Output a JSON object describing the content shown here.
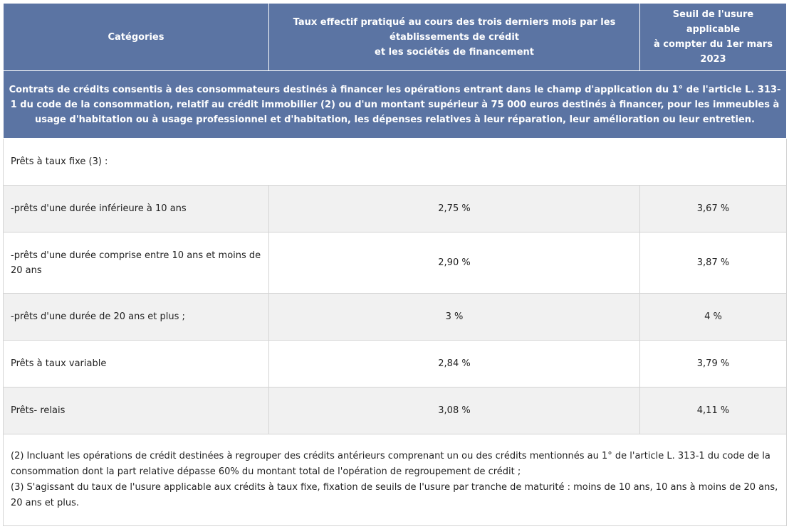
{
  "headers": {
    "categories": "Catégories",
    "taux_line1": "Taux effectif pratiqué au cours des trois derniers mois par les établissements de crédit",
    "taux_line2": "et les sociétés de financement",
    "seuil_line1": "Seuil de l'usure applicable",
    "seuil_line2": "à compter du 1er mars 2023"
  },
  "banner": "Contrats de crédits consentis à des consommateurs destinés à financer les opérations entrant dans le champ d'application du 1° de l'article L. 313-1 du code de la consommation, relatif au crédit immobilier (2) ou d'un montant supérieur à 75 000 euros destinés à financer, pour les immeubles à usage d'habitation ou à usage professionnel et d'habitation, les dépenses relatives à leur réparation, leur amélioration ou leur entretien.",
  "section_label": "Prêts à taux fixe (3) :",
  "rows": [
    {
      "label": "-prêts d'une durée inférieure à 10 ans",
      "taux": "2,75 %",
      "seuil": "3,67 %"
    },
    {
      "label": "-prêts d'une durée comprise entre 10 ans et moins de 20 ans",
      "taux": "2,90 %",
      "seuil": "3,87 %"
    },
    {
      "label": "-prêts d'une durée de 20 ans et plus ;",
      "taux": "3 %",
      "seuil": "4 %"
    },
    {
      "label": "Prêts à taux variable",
      "taux": "2,84 %",
      "seuil": "3,79 %"
    },
    {
      "label": "Prêts- relais",
      "taux": "3,08 %",
      "seuil": "4,11 %"
    }
  ],
  "notes": [
    "(2) Incluant les opérations de crédit destinées à regrouper des crédits antérieurs comprenant un ou des crédits mentionnés au 1° de l'article L. 313-1 du code de la consommation dont la part relative dépasse 60% du montant total de l'opération de regroupement de crédit ;",
    "(3) S'agissant du taux de l'usure applicable aux crédits à taux fixe, fixation de seuils de l'usure par tranche de maturité : moins de 10 ans, 10 ans à moins de 20 ans, 20 ans et plus."
  ]
}
